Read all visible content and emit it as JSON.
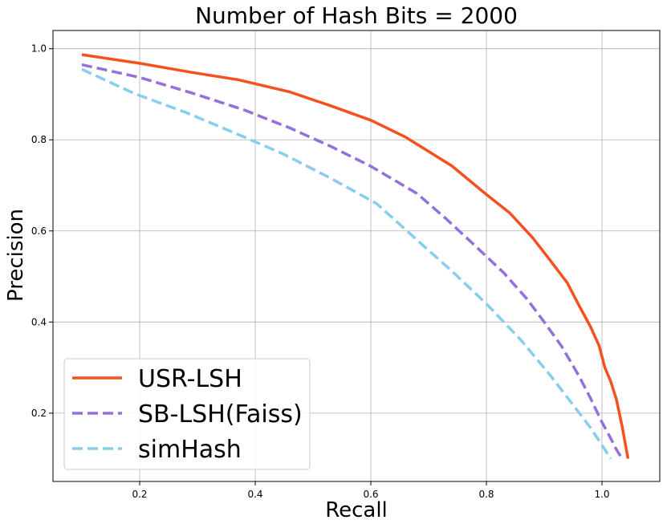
{
  "chart_data": {
    "type": "line",
    "title": "Number of Hash Bits = 2000",
    "xlabel": "Recall",
    "ylabel": "Precision",
    "xlim": [
      0.05,
      1.1
    ],
    "ylim": [
      0.05,
      1.04
    ],
    "xticks": [
      0.2,
      0.4,
      0.6,
      0.8,
      1.0
    ],
    "xtick_labels": [
      "0.2",
      "0.4",
      "0.6",
      "0.8",
      "1.0"
    ],
    "yticks": [
      0.2,
      0.4,
      0.6,
      0.8,
      1.0
    ],
    "ytick_labels": [
      "0.2",
      "0.4",
      "0.6",
      "0.8",
      "1.0"
    ],
    "grid": true,
    "legend_position": "lower-left",
    "series": [
      {
        "name": "USR-LSH",
        "color": "#f4511e",
        "style": "solid",
        "x": [
          0.1,
          0.2,
          0.29,
          0.37,
          0.46,
          0.53,
          0.6,
          0.66,
          0.74,
          0.8,
          0.84,
          0.88,
          0.91,
          0.94,
          0.96,
          0.98,
          0.995,
          1.005,
          1.015,
          1.025,
          1.035,
          1.045
        ],
        "y": [
          0.987,
          0.968,
          0.948,
          0.932,
          0.905,
          0.875,
          0.843,
          0.806,
          0.743,
          0.68,
          0.64,
          0.585,
          0.536,
          0.486,
          0.437,
          0.39,
          0.348,
          0.3,
          0.27,
          0.23,
          0.17,
          0.1
        ]
      },
      {
        "name": "SB-LSH(Faiss)",
        "color": "#9370db",
        "style": "dashed",
        "x": [
          0.1,
          0.2,
          0.29,
          0.38,
          0.46,
          0.53,
          0.6,
          0.68,
          0.73,
          0.78,
          0.83,
          0.87,
          0.9,
          0.93,
          0.96,
          0.98,
          1.0,
          1.015,
          1.025,
          1.035
        ],
        "y": [
          0.965,
          0.937,
          0.903,
          0.866,
          0.826,
          0.786,
          0.742,
          0.682,
          0.627,
          0.568,
          0.508,
          0.451,
          0.4,
          0.347,
          0.282,
          0.233,
          0.18,
          0.145,
          0.12,
          0.1
        ]
      },
      {
        "name": "simHash",
        "color": "#87ceeb",
        "style": "dashed",
        "x": [
          0.1,
          0.19,
          0.28,
          0.37,
          0.45,
          0.53,
          0.61,
          0.68,
          0.74,
          0.8,
          0.86,
          0.91,
          0.95,
          0.98,
          1.0,
          1.015
        ],
        "y": [
          0.955,
          0.902,
          0.86,
          0.812,
          0.768,
          0.716,
          0.66,
          0.58,
          0.512,
          0.44,
          0.36,
          0.284,
          0.218,
          0.168,
          0.13,
          0.1
        ]
      }
    ]
  }
}
